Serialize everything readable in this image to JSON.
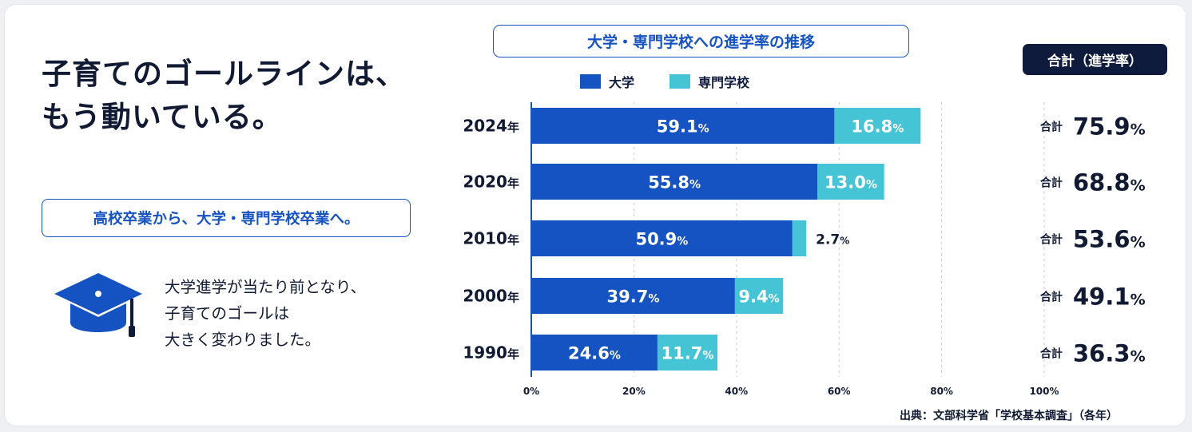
{
  "headline": {
    "line1": "子育てのゴールラインは、",
    "line2": "もう動いている。"
  },
  "subheading": "高校卒業から、大学・専門学校卒業へ。",
  "description": {
    "line1": "大学進学が当たり前となり、",
    "line2": "子育てのゴールは",
    "line3": "大きく変わりました。"
  },
  "icon": "graduation-cap-icon",
  "total_header": "合計（進学率）",
  "source": "出典：文部科学省「学校基本調査」（各年）",
  "colors": {
    "university": "#1552c2",
    "vocational": "#45c4d6",
    "navy": "#0f1b3d"
  },
  "chart_data": {
    "type": "bar",
    "orientation": "horizontal",
    "stacked": true,
    "title": "大学・専門学校への進学率の推移",
    "categories": [
      "2024",
      "2020",
      "2010",
      "2000",
      "1990"
    ],
    "category_suffix": "年",
    "series": [
      {
        "name": "大学",
        "values": [
          59.1,
          55.8,
          50.9,
          39.7,
          24.6
        ]
      },
      {
        "name": "専門学校",
        "values": [
          16.8,
          13.0,
          2.7,
          9.4,
          11.7
        ]
      }
    ],
    "totals": [
      75.9,
      68.8,
      53.6,
      49.1,
      36.3
    ],
    "total_label": "合計",
    "unit": "%",
    "xlim": [
      0,
      100
    ],
    "x_ticks": [
      "0%",
      "20%",
      "40%",
      "60%",
      "80%",
      "100%"
    ],
    "grid": "vertical dashed",
    "legend": "top"
  }
}
